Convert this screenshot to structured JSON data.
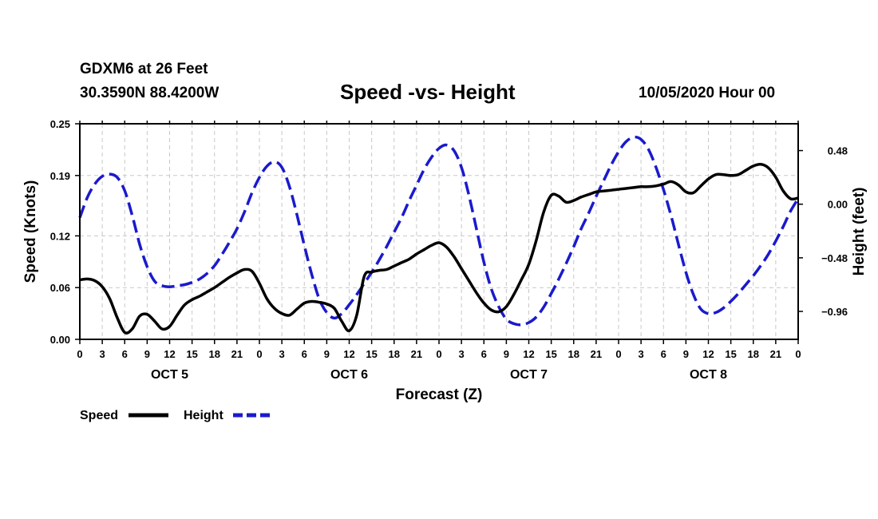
{
  "header": {
    "station": "GDXM6 at 26 Feet",
    "coords": "30.3590N 88.4200W",
    "title": "Speed -vs- Height",
    "date": "10/05/2020 Hour 00"
  },
  "chart_data": {
    "type": "line",
    "title": "Speed -vs- Height",
    "xlabel": "Forecast (Z)",
    "ylabel": "Speed (Knots)",
    "y2label": "Height (feet)",
    "xlim": [
      0,
      96
    ],
    "ylim": [
      0,
      0.25
    ],
    "y2lim": [
      -1.21,
      0.72
    ],
    "grid": true,
    "x_tick_labels": [
      "0",
      "3",
      "6",
      "9",
      "12",
      "15",
      "18",
      "21",
      "0",
      "3",
      "6",
      "9",
      "12",
      "15",
      "18",
      "21",
      "0",
      "3",
      "6",
      "9",
      "12",
      "15",
      "18",
      "21",
      "0",
      "3",
      "6",
      "9",
      "12",
      "15",
      "18",
      "21",
      "0"
    ],
    "day_labels": [
      "OCT 5",
      "OCT 6",
      "OCT 7",
      "OCT 8"
    ],
    "y_ticks": [
      0.0,
      0.06,
      0.12,
      0.19,
      0.25
    ],
    "y_tick_labels": [
      "0.00",
      "0.06",
      "0.12",
      "0.19",
      "0.25"
    ],
    "y2_ticks": [
      0.48,
      0.0,
      -0.48,
      -0.96
    ],
    "y2_tick_labels": [
      "0.48",
      "0.00",
      "−0.48",
      "−0.96"
    ],
    "legend": {
      "position": "bottom-left",
      "entries": [
        "Speed",
        "Height"
      ]
    },
    "series": [
      {
        "name": "Speed",
        "axis": "left",
        "color": "#000000",
        "style": "solid",
        "x": [
          0,
          1,
          2,
          3,
          4,
          5,
          6,
          7,
          8,
          9,
          10,
          11,
          12,
          13,
          14,
          15,
          16,
          17,
          18,
          19,
          20,
          21,
          22,
          23,
          24,
          25,
          26,
          27,
          28,
          29,
          30,
          31,
          32,
          33,
          34,
          35,
          36,
          37,
          38,
          39,
          40,
          41,
          42,
          43,
          44,
          45,
          46,
          47,
          48,
          49,
          50,
          51,
          52,
          53,
          54,
          55,
          56,
          57,
          58,
          59,
          60,
          61,
          62,
          63,
          64,
          65,
          66,
          67,
          68,
          69,
          70,
          71,
          72,
          73,
          74,
          75,
          76,
          77,
          78,
          79,
          80,
          81,
          82,
          83,
          84,
          85,
          86,
          87,
          88,
          89,
          90,
          91,
          92,
          93,
          94,
          95,
          96
        ],
        "values": [
          0.069,
          0.07,
          0.068,
          0.061,
          0.047,
          0.025,
          0.008,
          0.012,
          0.027,
          0.029,
          0.021,
          0.012,
          0.015,
          0.028,
          0.04,
          0.046,
          0.05,
          0.055,
          0.06,
          0.066,
          0.072,
          0.077,
          0.081,
          0.079,
          0.065,
          0.047,
          0.036,
          0.03,
          0.028,
          0.035,
          0.042,
          0.044,
          0.043,
          0.041,
          0.036,
          0.021,
          0.01,
          0.028,
          0.073,
          0.078,
          0.08,
          0.081,
          0.085,
          0.089,
          0.093,
          0.099,
          0.104,
          0.109,
          0.112,
          0.107,
          0.096,
          0.082,
          0.068,
          0.054,
          0.042,
          0.034,
          0.032,
          0.038,
          0.052,
          0.069,
          0.087,
          0.115,
          0.148,
          0.167,
          0.166,
          0.159,
          0.161,
          0.165,
          0.168,
          0.171,
          0.172,
          0.173,
          0.174,
          0.175,
          0.176,
          0.177,
          0.177,
          0.178,
          0.18,
          0.183,
          0.179,
          0.171,
          0.17,
          0.178,
          0.186,
          0.191,
          0.191,
          0.19,
          0.191,
          0.196,
          0.201,
          0.203,
          0.199,
          0.188,
          0.172,
          0.163,
          0.164
        ]
      },
      {
        "name": "Height",
        "axis": "right",
        "color": "#1a1acc",
        "style": "dashed",
        "x": [
          0,
          1,
          2,
          3,
          4,
          5,
          6,
          7,
          8,
          9,
          10,
          11,
          12,
          13,
          14,
          15,
          16,
          17,
          18,
          19,
          20,
          21,
          22,
          23,
          24,
          25,
          26,
          27,
          28,
          29,
          30,
          31,
          32,
          33,
          34,
          35,
          36,
          37,
          38,
          39,
          40,
          41,
          42,
          43,
          44,
          45,
          46,
          47,
          48,
          49,
          50,
          51,
          52,
          53,
          54,
          55,
          56,
          57,
          58,
          59,
          60,
          61,
          62,
          63,
          64,
          65,
          66,
          67,
          68,
          69,
          70,
          71,
          72,
          73,
          74,
          75,
          76,
          77,
          78,
          79,
          80,
          81,
          82,
          83,
          84,
          85,
          86,
          87,
          88,
          89,
          90,
          91,
          92,
          93,
          94,
          95,
          96
        ],
        "values": [
          -0.12,
          0.06,
          0.18,
          0.25,
          0.27,
          0.24,
          0.12,
          -0.1,
          -0.36,
          -0.56,
          -0.69,
          -0.73,
          -0.74,
          -0.73,
          -0.72,
          -0.7,
          -0.67,
          -0.62,
          -0.55,
          -0.45,
          -0.34,
          -0.22,
          -0.07,
          0.1,
          0.24,
          0.34,
          0.38,
          0.33,
          0.16,
          -0.09,
          -0.37,
          -0.63,
          -0.85,
          -0.97,
          -1.02,
          -0.98,
          -0.9,
          -0.81,
          -0.71,
          -0.61,
          -0.5,
          -0.38,
          -0.25,
          -0.12,
          0.03,
          0.17,
          0.31,
          0.42,
          0.5,
          0.53,
          0.48,
          0.33,
          0.08,
          -0.22,
          -0.52,
          -0.76,
          -0.92,
          -1.03,
          -1.07,
          -1.08,
          -1.06,
          -1.01,
          -0.92,
          -0.8,
          -0.67,
          -0.53,
          -0.38,
          -0.22,
          -0.08,
          0.07,
          0.21,
          0.35,
          0.47,
          0.56,
          0.6,
          0.58,
          0.49,
          0.33,
          0.13,
          -0.1,
          -0.36,
          -0.61,
          -0.81,
          -0.94,
          -0.98,
          -0.97,
          -0.93,
          -0.87,
          -0.8,
          -0.72,
          -0.64,
          -0.55,
          -0.45,
          -0.33,
          -0.2,
          -0.06,
          0.05
        ]
      }
    ]
  }
}
